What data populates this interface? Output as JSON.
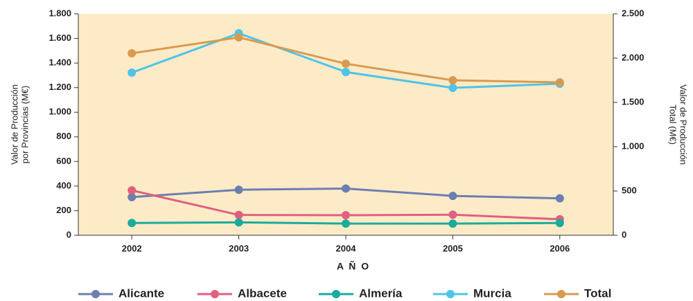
{
  "chart_data": {
    "type": "line",
    "y_label": [
      "Valor de Producción",
      "por Provincias (M€)"
    ],
    "y2_label": [
      "Valor de Producción",
      "Total (M€)"
    ],
    "x_label": "A Ñ O",
    "categories": [
      "2002",
      "2003",
      "2004",
      "2005",
      "2006"
    ],
    "series": [
      {
        "name": "Alicante",
        "color": "#6b7fb0",
        "values": [
          310,
          370,
          380,
          320,
          300
        ]
      },
      {
        "name": "Albacete",
        "color": "#e0607e",
        "values": [
          365,
          165,
          163,
          167,
          130
        ]
      },
      {
        "name": "Almería",
        "color": "#1aab9b",
        "values": [
          100,
          105,
          95,
          95,
          100
        ]
      },
      {
        "name": "Murcia",
        "color": "#4fc3e8",
        "values": [
          1322,
          1642,
          1327,
          1198,
          1232
        ]
      },
      {
        "name": "Total",
        "color": "#d99a4e",
        "axis": "y2",
        "values": [
          2055,
          2234,
          1937,
          1750,
          1727
        ]
      }
    ],
    "ylim": [
      0,
      1800
    ],
    "yticks": [
      0,
      200,
      400,
      600,
      800,
      {
        "value": 1000,
        "label": "1.000"
      },
      {
        "value": 1200,
        "label": "1.200"
      },
      {
        "value": 1400,
        "label": "1.400"
      },
      {
        "value": 1600,
        "label": "1.600"
      },
      {
        "value": 1800,
        "label": "1.800"
      }
    ],
    "y2lim": [
      0,
      2500
    ],
    "y2ticks": [
      0,
      500,
      {
        "value": 1000,
        "label": "1.000"
      },
      {
        "value": 1500,
        "label": "1.500"
      },
      {
        "value": 2000,
        "label": "2.000"
      },
      {
        "value": 2500,
        "label": "2.500"
      }
    ],
    "background": "#fdebc8"
  }
}
